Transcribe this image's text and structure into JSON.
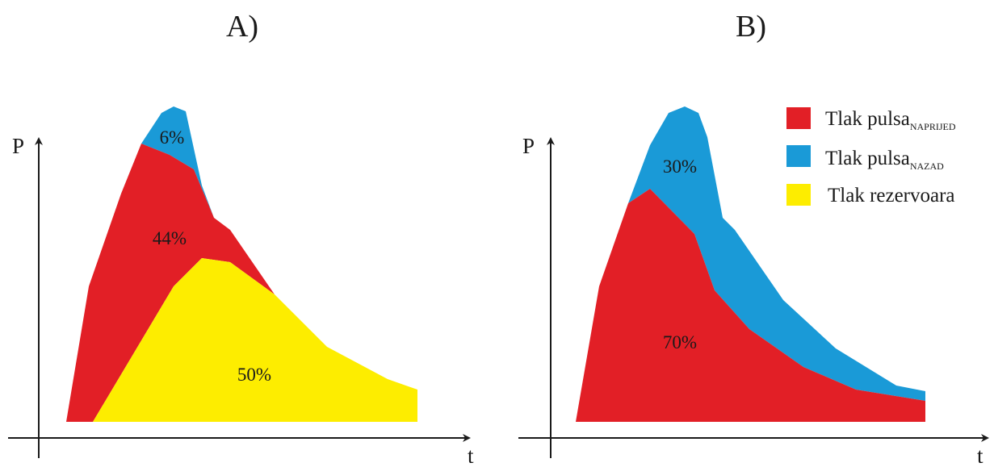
{
  "colors": {
    "forward": "#e21f26",
    "backward": "#1a9ad7",
    "reservoir": "#fded00",
    "axis": "#1a1a1a"
  },
  "panel_a": {
    "title": "A)",
    "y_axis_label": "P",
    "x_axis_label": "t",
    "forward_pct": "44%",
    "backward_pct": "6%",
    "reservoir_pct": "50%"
  },
  "panel_b": {
    "title": "B)",
    "y_axis_label": "P",
    "x_axis_label": "t",
    "forward_pct": "70%",
    "backward_pct": "30%"
  },
  "legend": {
    "items": [
      {
        "text": "Tlak pulsa",
        "sub": "NAPRIJED",
        "color": "forward-swatch"
      },
      {
        "text": "Tlak pulsa",
        "sub": "NAZAD",
        "color": "backward-swatch"
      },
      {
        "text": "Tlak rezervoara",
        "sub": "",
        "color": "reservoir-swatch"
      }
    ]
  }
}
